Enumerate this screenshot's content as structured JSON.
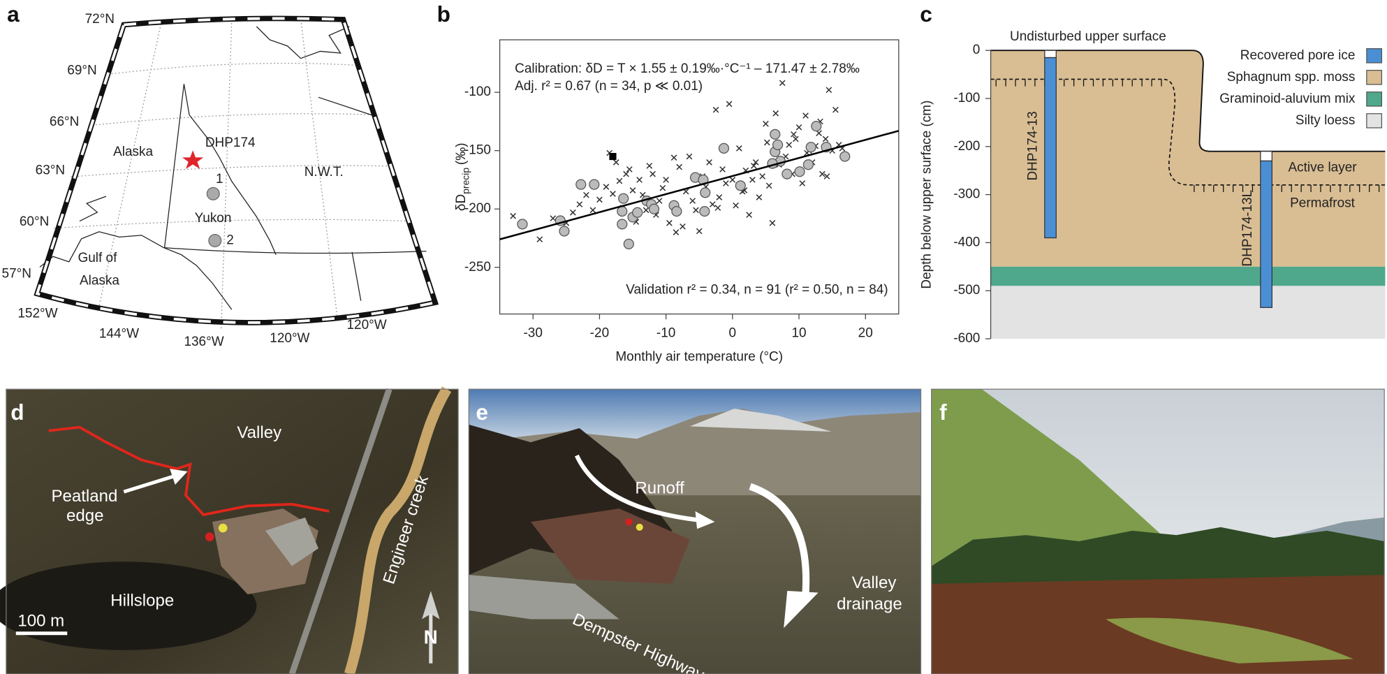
{
  "panels": {
    "a": {
      "letter": "a",
      "latitudes": [
        "72°N",
        "69°N",
        "66°N",
        "63°N",
        "60°N",
        "57°N"
      ],
      "longitudes": [
        "152°W",
        "144°W",
        "136°W",
        "120°W",
        "120°W"
      ],
      "places": [
        "Alaska",
        "DHP174",
        "N.W.T.",
        "1",
        "Yukon",
        "2"
      ],
      "sea": [
        "Gulf of",
        "Alaska"
      ]
    },
    "b": {
      "letter": "b"
    },
    "c": {
      "letter": "c"
    },
    "d": {
      "letter": "d",
      "labels": [
        "Valley",
        "Peatland",
        "edge",
        "Hillslope",
        "Engineer creek"
      ],
      "scale": "100 m",
      "north": "N"
    },
    "e": {
      "letter": "e",
      "labels": [
        "Runoff",
        "Valley",
        "drainage",
        "Dempster Highway"
      ]
    },
    "f": {
      "letter": "f"
    }
  },
  "chart_data": [
    {
      "type": "scatter",
      "annotations": [
        "Calibration: δD = T × 1.55 ± 0.19‰·°C⁻¹ – 171.47 ± 2.78‰",
        "Adj. r² = 0.67 (n = 34, p ≪ 0.01)",
        "Validation r² = 0.34, n = 91 (r² = 0.50, n = 84)"
      ],
      "xlabel": "Monthly air temperature (°C)",
      "ylabel": {
        "text": "δD",
        "subscript": "precip",
        "unit": "(‰)"
      },
      "xlim": [
        -35,
        25
      ],
      "ylim": [
        -290,
        -55
      ],
      "xticks": [
        -30,
        -20,
        -10,
        0,
        10,
        20
      ],
      "yticks": [
        -250,
        -200,
        -150,
        -100
      ],
      "series": [
        {
          "marker": "cross",
          "color": "#333333",
          "x": [
            -33,
            -29,
            -27,
            -25,
            -24,
            -23,
            -22,
            -21,
            -20,
            -19,
            -18.5,
            -18,
            -17.5,
            -17,
            -16.5,
            -16,
            -15.5,
            -15,
            -14.5,
            -14,
            -13.5,
            -13,
            -12.5,
            -12,
            -11.5,
            -11,
            -10.5,
            -10,
            -9.5,
            -9,
            -8.5,
            -8,
            -7.5,
            -7,
            -6.5,
            -6,
            -5.5,
            -5,
            -4.5,
            -4,
            -3.5,
            -3,
            -2.5,
            -2,
            -1.5,
            -1,
            -0.5,
            0,
            0.5,
            1,
            1.5,
            2,
            2.5,
            3,
            3.5,
            4,
            4.5,
            5,
            5.5,
            6,
            6.5,
            7,
            7.5,
            8,
            8.5,
            9,
            9.5,
            10,
            10.5,
            11,
            11.5,
            12,
            12.5,
            13,
            13.5,
            14,
            14.5,
            15,
            15.5,
            16,
            16.5,
            3.2,
            5.2,
            7.2,
            9.2,
            11.2,
            13.2,
            14.2,
            -2.2,
            1.8,
            -8.8
          ],
          "values": [
            -206,
            -226,
            -208,
            -212,
            -203,
            -196,
            -188,
            -201,
            -192,
            -181,
            -152,
            -187,
            -160,
            -176,
            -199,
            -170,
            -166,
            -184,
            -211,
            -175,
            -188,
            -201,
            -163,
            -170,
            -205,
            -193,
            -182,
            -175,
            -212,
            -197,
            -220,
            -164,
            -215,
            -185,
            -155,
            -193,
            -201,
            -219,
            -172,
            -181,
            -160,
            -196,
            -115,
            -190,
            -166,
            -178,
            -110,
            -175,
            -197,
            -148,
            -185,
            -167,
            -205,
            -175,
            -160,
            -190,
            -172,
            -127,
            -180,
            -212,
            -118,
            -162,
            -92,
            -155,
            -145,
            -170,
            -140,
            -130,
            -178,
            -120,
            -150,
            -160,
            -146,
            -135,
            -170,
            -140,
            -98,
            -150,
            -115,
            -145,
            -148,
            -163,
            -143,
            -158,
            -136,
            -152,
            -125,
            -172,
            -199,
            -184,
            -156
          ]
        },
        {
          "marker": "circle",
          "color": "#bbbbbb",
          "x": [
            -31.6,
            -25.9,
            -25.3,
            -22.8,
            -20.8,
            -16.4,
            -16.6,
            -16.6,
            -15.6,
            -15,
            -14.3,
            -12.9,
            -12.2,
            -11.8,
            -8.8,
            -8.4,
            -5.6,
            -4.2,
            -4.1,
            -4.4,
            -1.3,
            1.2,
            6.4,
            6.8,
            6.4,
            7.2,
            6,
            8.2,
            10.1,
            11.4,
            11.8,
            12.6,
            14.1,
            16.9
          ],
          "values": [
            -213,
            -210,
            -219,
            -179,
            -179,
            -191,
            -202,
            -213,
            -230,
            -207,
            -203,
            -193,
            -196,
            -200,
            -197,
            -202,
            -173,
            -202,
            -186,
            -175,
            -148,
            -180,
            -151,
            -145,
            -136,
            -159,
            -161,
            -170,
            -168,
            -162,
            -147,
            -129,
            -147,
            -155
          ]
        },
        {
          "marker": "square",
          "color": "#000000",
          "x": [
            -18
          ],
          "values": [
            -155
          ]
        },
        {
          "marker": "line",
          "color": "#000000",
          "x": [
            -35,
            25
          ],
          "values": [
            -226,
            -133
          ]
        }
      ]
    },
    {
      "type": "profile",
      "ylabel": "Depth below upper surface (cm)",
      "ylim": [
        -600,
        0
      ],
      "yticks": [
        0,
        -100,
        -200,
        -300,
        -400,
        -500,
        -600
      ],
      "pore_ice": {
        "name": "Recovered pore ice",
        "color": "#4a8fd4"
      },
      "layers": [
        {
          "name": "Sphagnum spp. moss",
          "color": "#d9bd93",
          "top": 0,
          "bottom": -450
        },
        {
          "name": "Graminoid-aluvium mix",
          "color": "#4fa88c",
          "top": -450,
          "bottom": -490
        },
        {
          "name": "Silty loess",
          "color": "#e3e3e3",
          "top": -490,
          "bottom": -600
        }
      ],
      "cores": [
        {
          "label": "DHP174-13",
          "top": 0,
          "ice_top": -15,
          "bottom": -390
        },
        {
          "label": "DHP174-13L",
          "top": -210,
          "ice_top": -230,
          "bottom": -535
        }
      ],
      "active_layer": [
        -60,
        -280
      ],
      "labels": {
        "surface": "Undisturbed upper surface",
        "active": "Active layer",
        "permafrost": "Permafrost"
      }
    }
  ]
}
